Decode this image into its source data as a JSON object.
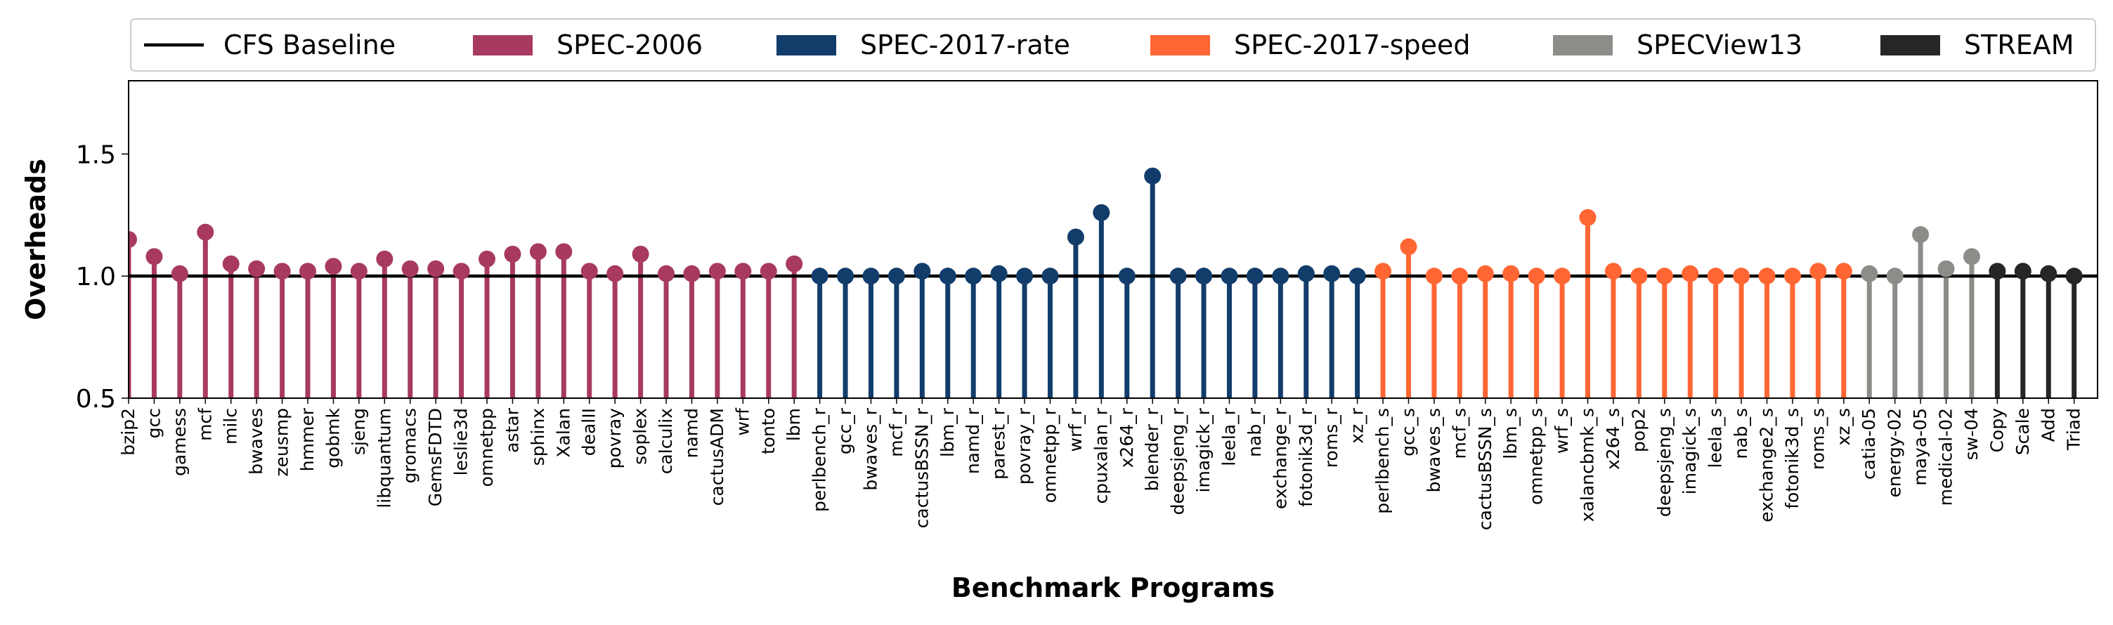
{
  "chart_data": {
    "type": "lollipop",
    "xlabel": "Benchmark Programs",
    "ylabel": "Overheads",
    "ylim": [
      0.5,
      1.8
    ],
    "yticks": [
      0.5,
      1.0,
      1.5
    ],
    "ytick_labels": [
      "0.5",
      "1.0",
      "1.5"
    ],
    "baseline": {
      "name": "CFS Baseline",
      "value": 1.0,
      "color": "#000000"
    },
    "legend_position": "top",
    "series": [
      {
        "name": "SPEC-2006",
        "color": "#A83A62",
        "categories": [
          "bzip2",
          "gcc",
          "gamess",
          "mcf",
          "milc",
          "bwaves",
          "zeusmp",
          "hmmer",
          "gobmk",
          "sjeng",
          "libquantum",
          "gromacs",
          "GemsFDTD",
          "leslie3d",
          "omnetpp",
          "astar",
          "sphinx",
          "Xalan",
          "dealII",
          "povray",
          "soplex",
          "calculix",
          "namd",
          "cactusADM",
          "wrf",
          "tonto",
          "lbm"
        ],
        "values": [
          1.15,
          1.08,
          1.01,
          1.18,
          1.05,
          1.03,
          1.02,
          1.02,
          1.04,
          1.02,
          1.07,
          1.03,
          1.03,
          1.02,
          1.07,
          1.09,
          1.1,
          1.1,
          1.02,
          1.01,
          1.09,
          1.01,
          1.01,
          1.02,
          1.02,
          1.02,
          1.05
        ]
      },
      {
        "name": "SPEC-2017-rate",
        "color": "#123D6B",
        "categories": [
          "perlbench_r",
          "gcc_r",
          "bwaves_r",
          "mcf_r",
          "cactusBSSN_r",
          "lbm_r",
          "namd_r",
          "parest_r",
          "povray_r",
          "omnetpp_r",
          "wrf_r",
          "cpuxalan_r",
          "x264_r",
          "blender_r",
          "deepsjeng_r",
          "imagick_r",
          "leela_r",
          "nab_r",
          "exchange_r",
          "fotonik3d_r",
          "roms_r",
          "xz_r"
        ],
        "values": [
          1.0,
          1.0,
          1.0,
          1.0,
          1.02,
          1.0,
          1.0,
          1.01,
          1.0,
          1.0,
          1.16,
          1.26,
          1.0,
          1.41,
          1.0,
          1.0,
          1.0,
          1.0,
          1.0,
          1.01,
          1.01,
          1.0
        ]
      },
      {
        "name": "SPEC-2017-speed",
        "color": "#FF6633",
        "categories": [
          "perlbench_s",
          "gcc_s",
          "bwaves_s",
          "mcf_s",
          "cactusBSSN_s",
          "lbm_s",
          "omnetpp_s",
          "wrf_s",
          "xalancbmk_s",
          "x264_s",
          "pop2",
          "deepsjeng_s",
          "imagick_s",
          "leela_s",
          "nab_s",
          "exchange2_s",
          "fotonik3d_s",
          "roms_s",
          "xz_s"
        ],
        "values": [
          1.02,
          1.12,
          1.0,
          1.0,
          1.01,
          1.01,
          1.0,
          1.0,
          1.24,
          1.02,
          1.0,
          1.0,
          1.01,
          1.0,
          1.0,
          1.0,
          1.0,
          1.02,
          1.02
        ]
      },
      {
        "name": "SPECView13",
        "color": "#8C8C89",
        "categories": [
          "catia-05",
          "energy-02",
          "maya-05",
          "medical-02",
          "sw-04"
        ],
        "values": [
          1.01,
          1.0,
          1.17,
          1.03,
          1.08
        ]
      },
      {
        "name": "STREAM",
        "color": "#262626",
        "categories": [
          "Copy",
          "Scale",
          "Add",
          "Triad"
        ],
        "values": [
          1.02,
          1.02,
          1.01,
          1.0
        ]
      }
    ]
  }
}
